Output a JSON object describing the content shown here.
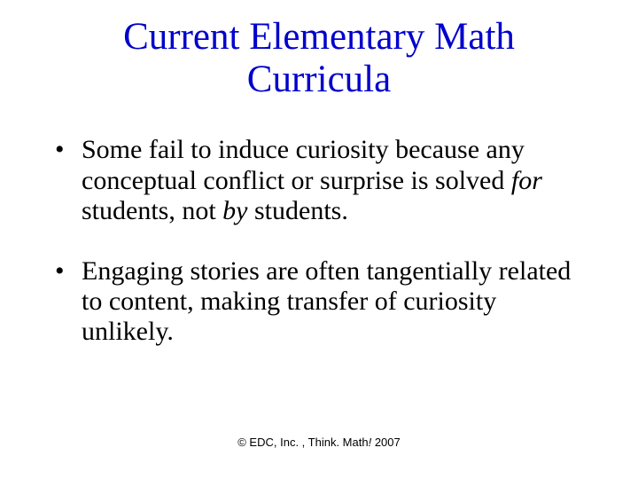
{
  "title_color": "#0000cc",
  "body_color": "#000000",
  "background_color": "#ffffff",
  "title_fontsize": 43,
  "body_fontsize": 30,
  "footer_fontsize": 13,
  "title": {
    "line1": "Current Elementary Math",
    "line2": "Curricula"
  },
  "bullets": [
    {
      "pre": "Some fail to induce curiosity because any conceptual conflict or surprise is solved ",
      "em1": "for",
      "mid": " students, not ",
      "em2": "by",
      "post": " students."
    },
    {
      "pre": "Engaging stories are often tangentially related to content, making transfer of curiosity unlikely.",
      "em1": "",
      "mid": "",
      "em2": "",
      "post": ""
    }
  ],
  "footer": {
    "pre": "© EDC, Inc. , Think. Math",
    "em": "!",
    "post": " 2007"
  }
}
